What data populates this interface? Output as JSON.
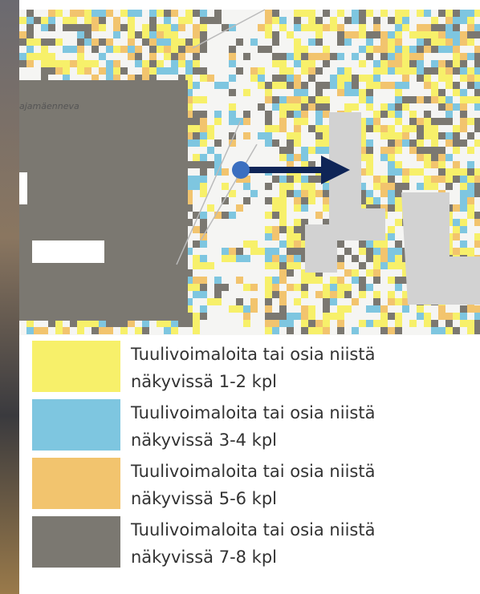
{
  "map": {
    "place_label": "ajamäenneva"
  },
  "legend": {
    "items": [
      {
        "lines": [
          "Tuulivoimaloita tai osia niistä",
          "näkyvissä 1-2 kpl"
        ],
        "color": "#f7f06a"
      },
      {
        "lines": [
          "Tuulivoimaloita tai osia niistä",
          "näkyvissä 3-4 kpl"
        ],
        "color": "#7ec6e0"
      },
      {
        "lines": [
          "Tuulivoimaloita tai osia niistä",
          "näkyvissä 5-6 kpl"
        ],
        "color": "#f2c46e"
      },
      {
        "lines": [
          "Tuulivoimaloita tai osia niistä",
          "näkyvissä 7-8 kpl"
        ],
        "color": "#7b7871"
      }
    ]
  }
}
